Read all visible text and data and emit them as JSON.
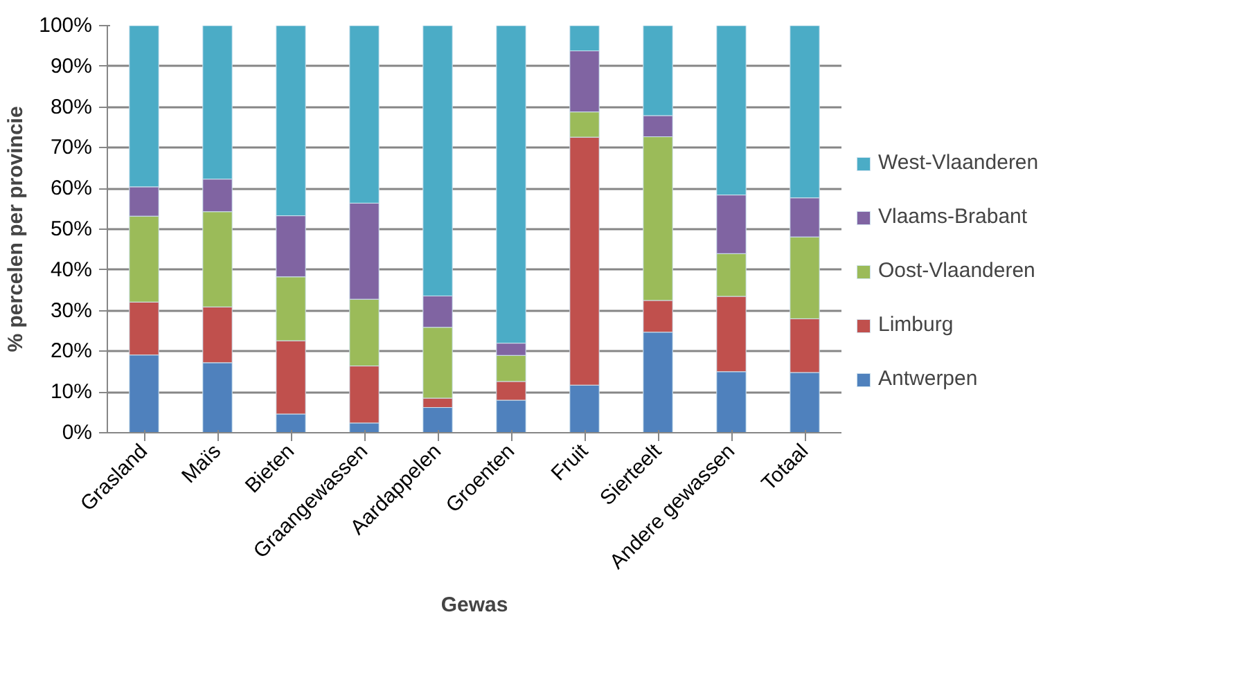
{
  "chart_data": {
    "type": "bar",
    "stacked": true,
    "xlabel": "Gewas",
    "ylabel": "% percelen per provincie",
    "categories": [
      "Grasland",
      "Maïs",
      "Bieten",
      "Graangewassen",
      "Aardappelen",
      "Groenten",
      "Fruit",
      "Sierteelt",
      "Andere gewassen",
      "Totaal"
    ],
    "series": [
      {
        "name": "Antwerpen",
        "color": "#4f81bd",
        "values": [
          19.1,
          17.2,
          4.6,
          2.4,
          6.2,
          8.0,
          11.7,
          24.7,
          15.0,
          14.8
        ]
      },
      {
        "name": "Limburg",
        "color": "#c0504d",
        "values": [
          13.0,
          13.7,
          18.0,
          14.0,
          2.3,
          4.6,
          60.9,
          7.8,
          18.5,
          13.2
        ]
      },
      {
        "name": "Oost-Vlaanderen",
        "color": "#9bbb59",
        "values": [
          21.1,
          23.4,
          15.7,
          16.4,
          17.4,
          6.4,
          6.2,
          40.2,
          10.5,
          20.1
        ]
      },
      {
        "name": "Vlaams-Brabant",
        "color": "#8064a2",
        "values": [
          7.2,
          8.0,
          15.0,
          23.6,
          7.7,
          3.0,
          15.0,
          5.2,
          14.4,
          9.6
        ]
      },
      {
        "name": "West-Vlaanderen",
        "color": "#4bacc6",
        "values": [
          39.6,
          37.7,
          46.7,
          43.6,
          66.4,
          78.0,
          6.2,
          22.1,
          41.6,
          42.3
        ]
      }
    ],
    "ylim": [
      0,
      100
    ],
    "yticks": [
      {
        "value": 0,
        "label": "0%"
      },
      {
        "value": 10,
        "label": "10%"
      },
      {
        "value": 20,
        "label": "20%"
      },
      {
        "value": 30,
        "label": "30%"
      },
      {
        "value": 40,
        "label": "40%"
      },
      {
        "value": 50,
        "label": "50%"
      },
      {
        "value": 60,
        "label": "60%"
      },
      {
        "value": 70,
        "label": "70%"
      },
      {
        "value": 80,
        "label": "80%"
      },
      {
        "value": 90,
        "label": "90%"
      },
      {
        "value": 100,
        "label": "100%"
      }
    ],
    "grid": "y",
    "legend": "right"
  }
}
